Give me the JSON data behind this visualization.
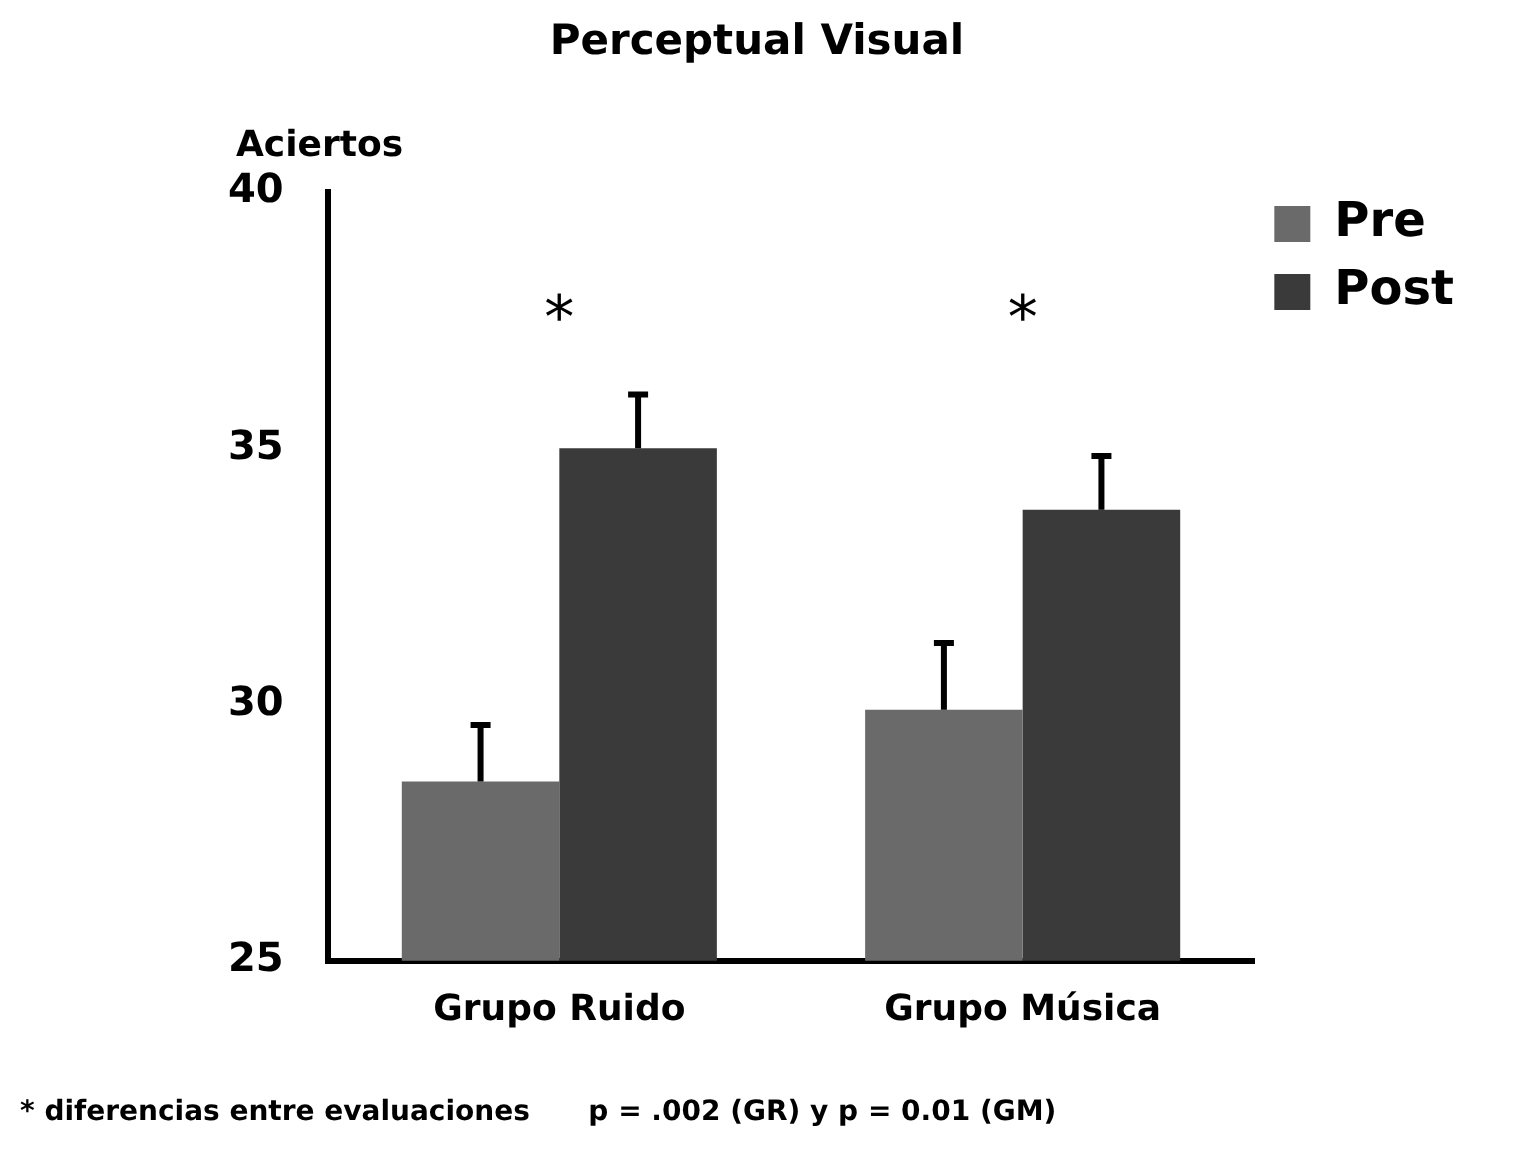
{
  "chart_data": {
    "type": "bar",
    "title": "Perceptual Visual",
    "ylabel": "Aciertos",
    "categories": [
      "Grupo Ruido",
      "Grupo Música"
    ],
    "series": [
      {
        "name": "Pre",
        "color": "#6a6a6a",
        "values": [
          28.5,
          29.9
        ],
        "errors": [
          [
            28.5,
            29.6
          ],
          [
            29.9,
            31.2
          ]
        ]
      },
      {
        "name": "Post",
        "color": "#3a3a3a",
        "values": [
          35.0,
          33.8
        ],
        "errors": [
          [
            35.0,
            36.05
          ],
          [
            33.8,
            34.85
          ]
        ]
      }
    ],
    "ylim": [
      25,
      40
    ],
    "yticks": [
      25,
      30,
      35,
      40
    ],
    "grid": false,
    "legend": "top right",
    "annotations": [
      "*",
      "*",
      "* diferencias entre evaluaciones      p = .002 (GR) y p = 0.01 (GM)"
    ]
  }
}
